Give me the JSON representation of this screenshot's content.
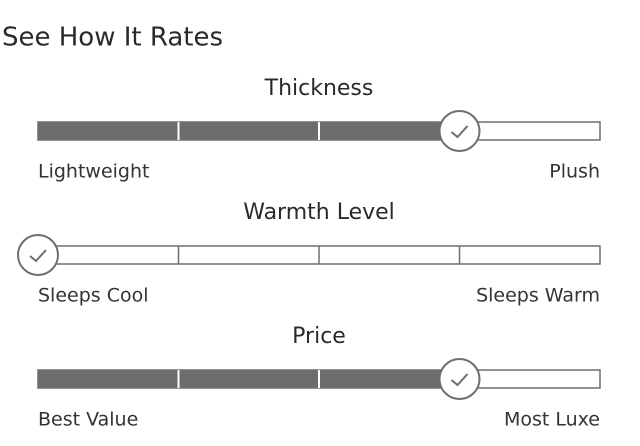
{
  "title": "See How It Rates",
  "segments": 4,
  "ratings": [
    {
      "label": "Thickness",
      "low": "Lightweight",
      "high": "Plush",
      "value": 3
    },
    {
      "label": "Warmth Level",
      "low": "Sleeps Cool",
      "high": "Sleeps Warm",
      "value": 0
    },
    {
      "label": "Price",
      "low": "Best Value",
      "high": "Most Luxe",
      "value": 3
    }
  ]
}
